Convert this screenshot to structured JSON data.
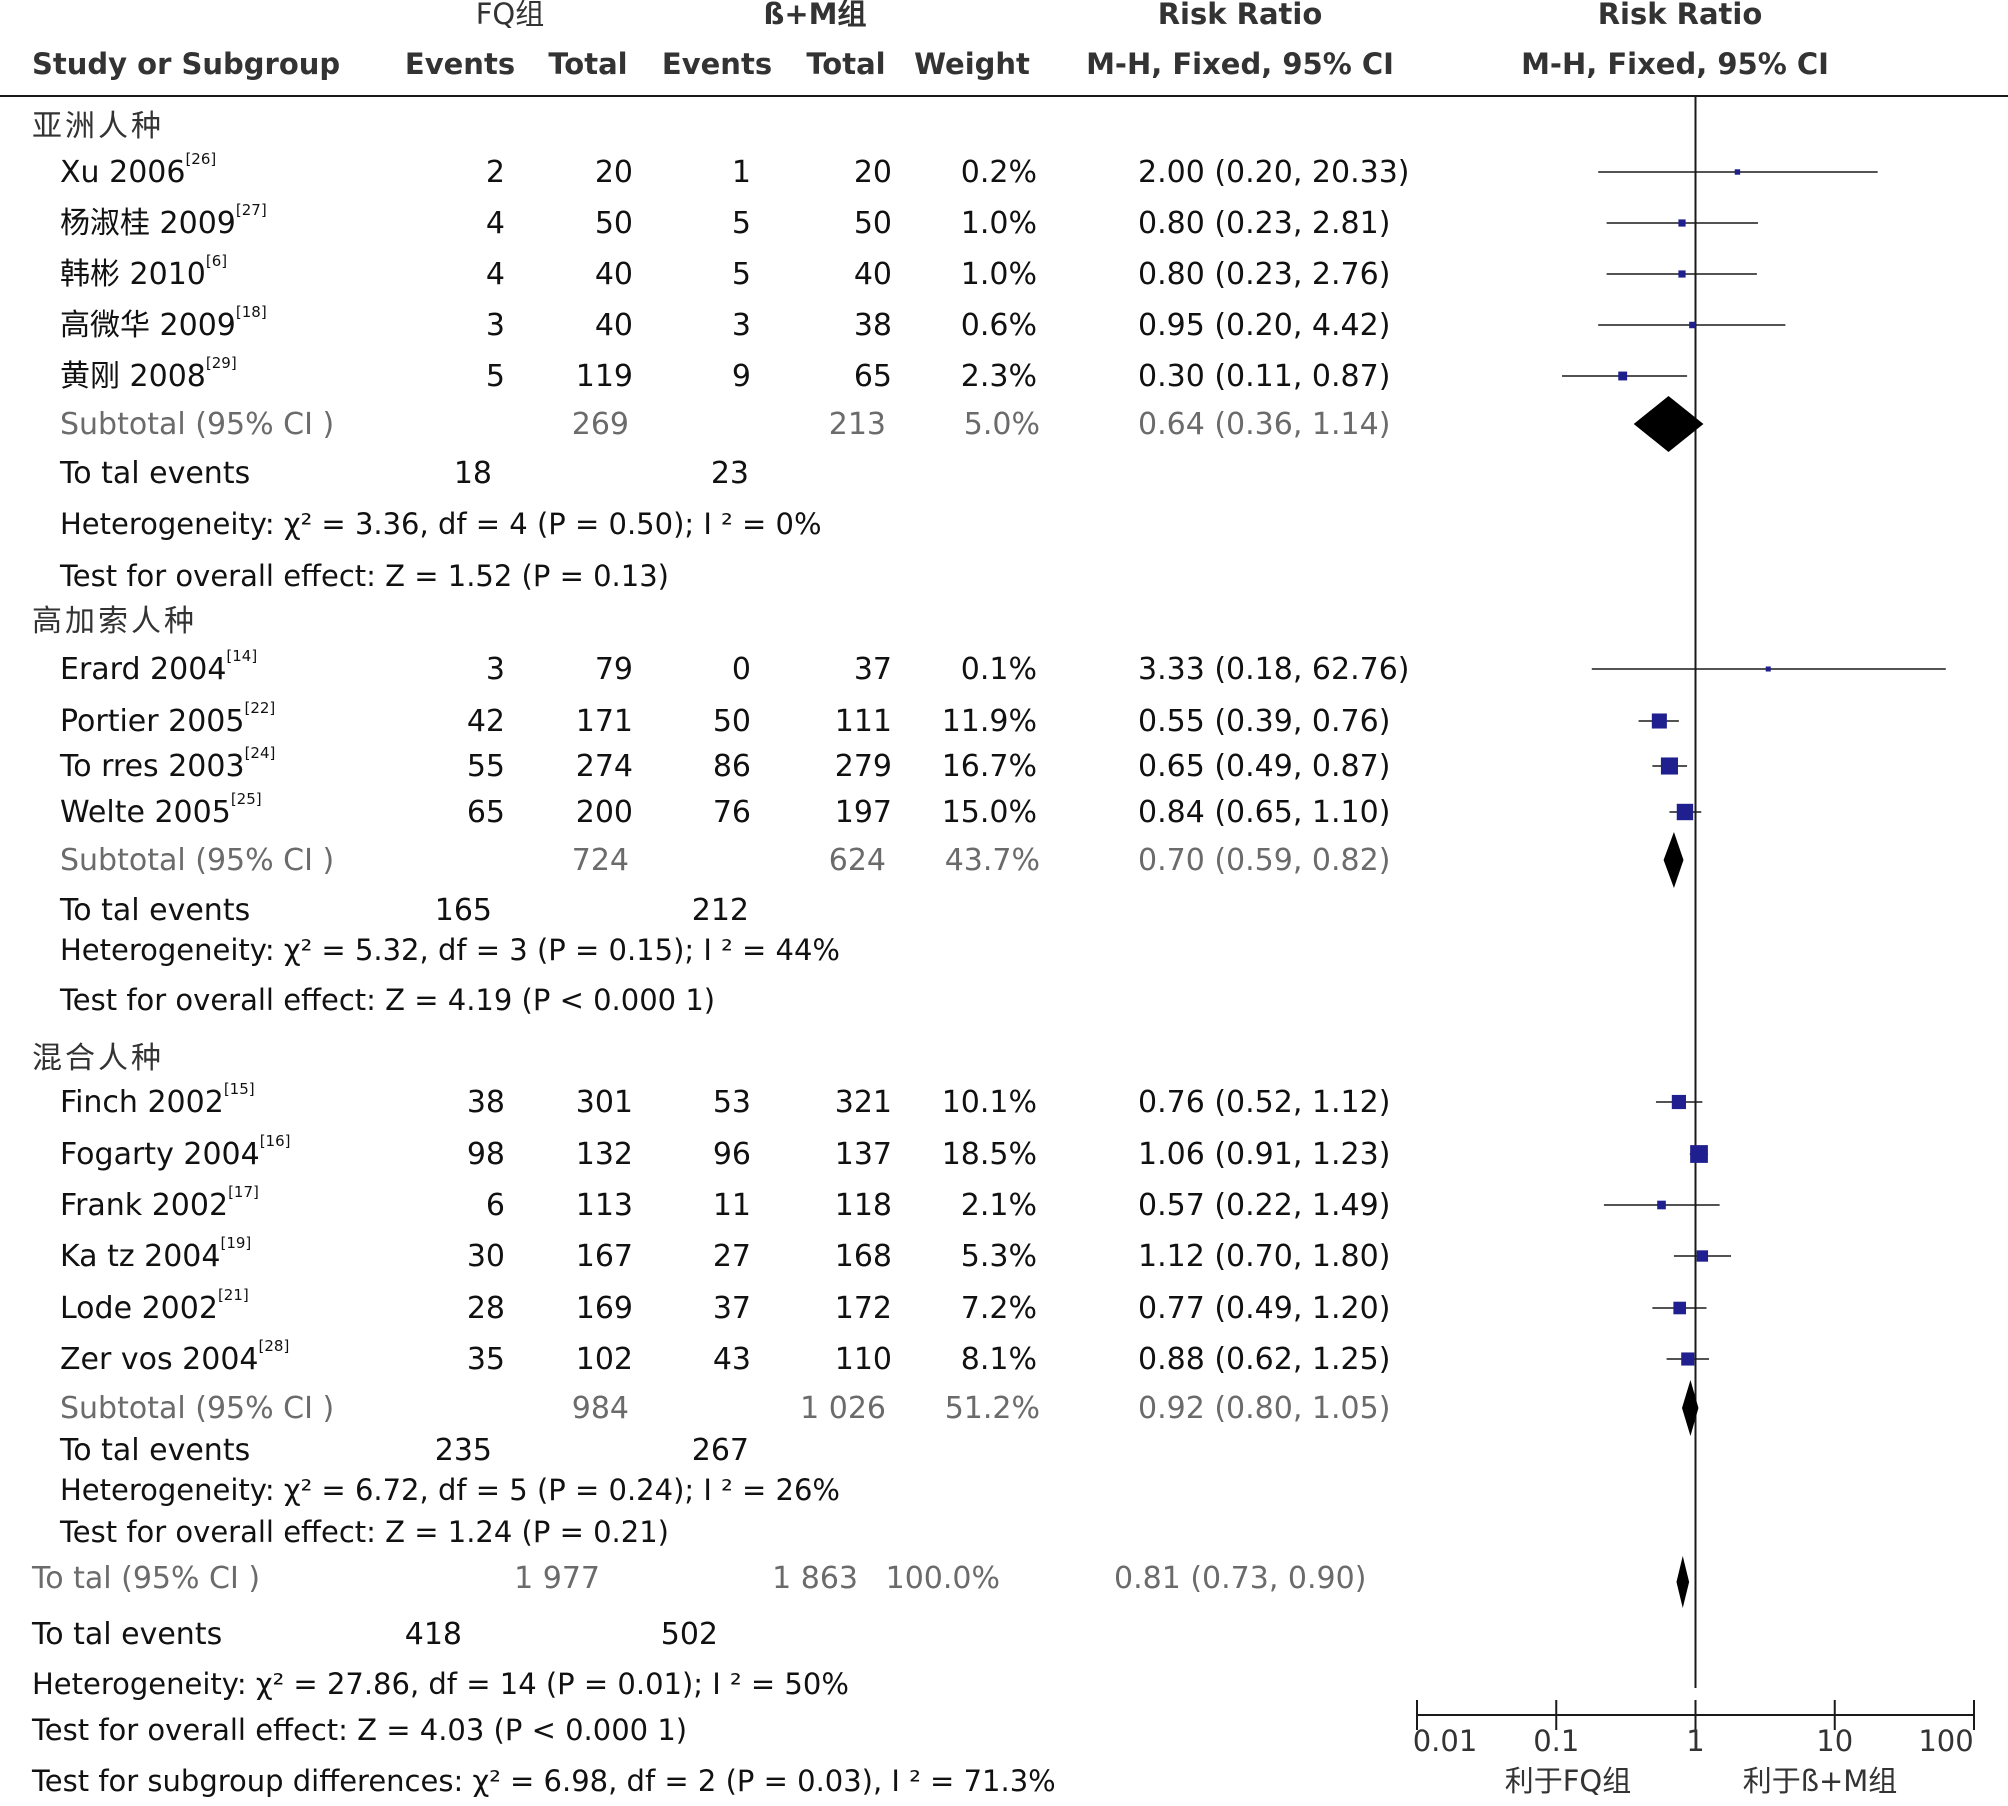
{
  "header": {
    "group1": "FQ组",
    "group2": "ß+M组",
    "rr_top_table": "Risk Ratio",
    "rr_top_plot": "Risk Ratio",
    "study_col": "Study or Subgroup",
    "events1": "Events",
    "total1": "Total",
    "events2": "Events",
    "total2": "Total",
    "weight": "Weight",
    "method_table": "M-H, Fixed, 95% CI",
    "method_plot": "M-H, Fixed, 95% CI"
  },
  "chart_data": {
    "type": "forest",
    "x_scale": "log",
    "xlim": [
      0.01,
      100
    ],
    "null_line": 1,
    "ticks": [
      "0.01",
      "0.1",
      "1",
      "10",
      "100"
    ],
    "favours_left": "利于FQ组",
    "favours_right": "利于ß+M组",
    "subgroups": [
      {
        "name": "亚洲人种",
        "studies": [
          {
            "name": "Xu 2006",
            "ref": "[26]",
            "e1": "2",
            "t1": "20",
            "e2": "1",
            "t2": "20",
            "weight": "0.2%",
            "ci_text": "2.00 (0.20, 20.33)",
            "rr": 2.0,
            "lo": 0.2,
            "hi": 20.33
          },
          {
            "name": "杨淑桂 2009",
            "ref": "[27]",
            "e1": "4",
            "t1": "50",
            "e2": "5",
            "t2": "50",
            "weight": "1.0%",
            "ci_text": "0.80 (0.23, 2.81)",
            "rr": 0.8,
            "lo": 0.23,
            "hi": 2.81
          },
          {
            "name": "韩彬 2010",
            "ref": "[6]",
            "e1": "4",
            "t1": "40",
            "e2": "5",
            "t2": "40",
            "weight": "1.0%",
            "ci_text": "0.80 (0.23, 2.76)",
            "rr": 0.8,
            "lo": 0.23,
            "hi": 2.76
          },
          {
            "name": "高微华 2009",
            "ref": "[18]",
            "e1": "3",
            "t1": "40",
            "e2": "3",
            "t2": "38",
            "weight": "0.6%",
            "ci_text": "0.95 (0.20, 4.42)",
            "rr": 0.95,
            "lo": 0.2,
            "hi": 4.42
          },
          {
            "name": "黄刚 2008",
            "ref": "[29]",
            "e1": "5",
            "t1": "119",
            "e2": "9",
            "t2": "65",
            "weight": "2.3%",
            "ci_text": "0.30 (0.11, 0.87)",
            "rr": 0.3,
            "lo": 0.11,
            "hi": 0.87
          }
        ],
        "subtotal": {
          "label": "Subtotal (95% CI )",
          "t1": "269",
          "t2": "213",
          "weight": "5.0%",
          "ci_text": "0.64 (0.36, 1.14)",
          "rr": 0.64,
          "lo": 0.36,
          "hi": 1.14
        },
        "total_events": {
          "label": "To tal events",
          "e1": "18",
          "e2": "23"
        },
        "heterogeneity": "Heterogeneity:  χ² = 3.36, df = 4 (P = 0.50); I ² = 0%",
        "overall_effect": "Test for overall effect: Z = 1.52 (P = 0.13)"
      },
      {
        "name": "高加索人种",
        "studies": [
          {
            "name": "Erard 2004",
            "ref": "[14]",
            "e1": "3",
            "t1": "79",
            "e2": "0",
            "t2": "37",
            "weight": "0.1%",
            "ci_text": "3.33 (0.18, 62.76)",
            "rr": 3.33,
            "lo": 0.18,
            "hi": 62.76
          },
          {
            "name": "Portier 2005",
            "ref": "[22]",
            "e1": "42",
            "t1": "171",
            "e2": "50",
            "t2": "111",
            "weight": "11.9%",
            "ci_text": "0.55 (0.39, 0.76)",
            "rr": 0.55,
            "lo": 0.39,
            "hi": 0.76
          },
          {
            "name": "To rres 2003",
            "ref": "[24]",
            "e1": "55",
            "t1": "274",
            "e2": "86",
            "t2": "279",
            "weight": "16.7%",
            "ci_text": "0.65 (0.49, 0.87)",
            "rr": 0.65,
            "lo": 0.49,
            "hi": 0.87
          },
          {
            "name": "Welte 2005",
            "ref": "[25]",
            "e1": "65",
            "t1": "200",
            "e2": "76",
            "t2": "197",
            "weight": "15.0%",
            "ci_text": "0.84 (0.65, 1.10)",
            "rr": 0.84,
            "lo": 0.65,
            "hi": 1.1
          }
        ],
        "subtotal": {
          "label": "Subtotal (95% CI )",
          "t1": "724",
          "t2": "624",
          "weight": "43.7%",
          "ci_text": "0.70 (0.59, 0.82)",
          "rr": 0.7,
          "lo": 0.59,
          "hi": 0.82
        },
        "total_events": {
          "label": "To tal events",
          "e1": "165",
          "e2": "212"
        },
        "heterogeneity": "Heterogeneity:  χ² = 5.32, df = 3 (P = 0.15); I ² = 44%",
        "overall_effect": "Test for overall effect: Z = 4.19 (P < 0.000 1)"
      },
      {
        "name": "混合人种",
        "studies": [
          {
            "name": "Finch 2002",
            "ref": "[15]",
            "e1": "38",
            "t1": "301",
            "e2": "53",
            "t2": "321",
            "weight": "10.1%",
            "ci_text": "0.76 (0.52, 1.12)",
            "rr": 0.76,
            "lo": 0.52,
            "hi": 1.12
          },
          {
            "name": "Fogarty 2004",
            "ref": "[16]",
            "e1": "98",
            "t1": "132",
            "e2": "96",
            "t2": "137",
            "weight": "18.5%",
            "ci_text": "1.06 (0.91, 1.23)",
            "rr": 1.06,
            "lo": 0.91,
            "hi": 1.23
          },
          {
            "name": "Frank 2002",
            "ref": "[17]",
            "e1": "6",
            "t1": "113",
            "e2": "11",
            "t2": "118",
            "weight": "2.1%",
            "ci_text": "0.57 (0.22, 1.49)",
            "rr": 0.57,
            "lo": 0.22,
            "hi": 1.49
          },
          {
            "name": "Ka tz 2004",
            "ref": "[19]",
            "e1": "30",
            "t1": "167",
            "e2": "27",
            "t2": "168",
            "weight": "5.3%",
            "ci_text": "1.12 (0.70, 1.80)",
            "rr": 1.12,
            "lo": 0.7,
            "hi": 1.8
          },
          {
            "name": "Lode 2002",
            "ref": "[21]",
            "e1": "28",
            "t1": "169",
            "e2": "37",
            "t2": "172",
            "weight": "7.2%",
            "ci_text": "0.77 (0.49, 1.20)",
            "rr": 0.77,
            "lo": 0.49,
            "hi": 1.2
          },
          {
            "name": "Zer vos 2004",
            "ref": "[28]",
            "e1": "35",
            "t1": "102",
            "e2": "43",
            "t2": "110",
            "weight": "8.1%",
            "ci_text": "0.88 (0.62, 1.25)",
            "rr": 0.88,
            "lo": 0.62,
            "hi": 1.25
          }
        ],
        "subtotal": {
          "label": "Subtotal (95% CI )",
          "t1": "984",
          "t2": "1 026",
          "weight": "51.2%",
          "ci_text": "0.92 (0.80, 1.05)",
          "rr": 0.92,
          "lo": 0.8,
          "hi": 1.05
        },
        "total_events": {
          "label": "To tal events",
          "e1": "235",
          "e2": "267"
        },
        "heterogeneity": "Heterogeneity:  χ² = 6.72, df = 5 (P = 0.24); I ² = 26%",
        "overall_effect": "Test for overall effect: Z = 1.24 (P = 0.21)"
      }
    ],
    "overall": {
      "label": "To tal (95% CI )",
      "t1": "1 977",
      "t2": "1 863",
      "weight": "100.0%",
      "ci_text": "0.81 (0.73, 0.90)",
      "rr": 0.81,
      "lo": 0.73,
      "hi": 0.9,
      "total_events": {
        "label": "To tal events",
        "e1": "418",
        "e2": "502"
      },
      "heterogeneity": "Heterogeneity:  χ² = 27.86, df = 14 (P = 0.01); I ² = 50%",
      "overall_effect": "Test for overall effect: Z = 4.03 (P < 0.000 1)",
      "subgroup_diff": "Test for subgroup differences:  χ² = 6.98, df = 2 (P = 0.03), I ² = 71.3%"
    },
    "colors": {
      "study_marker": "#1f1f8f",
      "diamond": "#000000",
      "lines": "#1a1a1a"
    }
  }
}
